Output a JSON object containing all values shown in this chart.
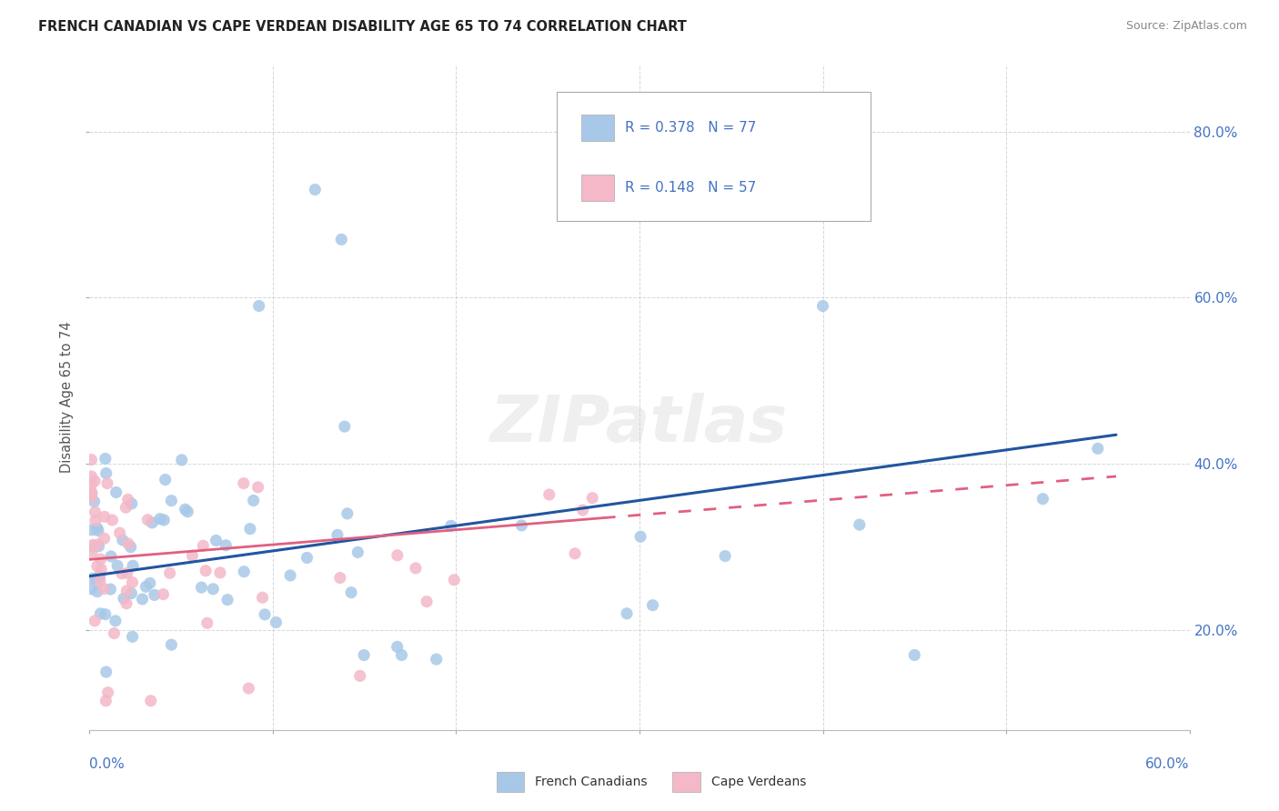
{
  "title": "FRENCH CANADIAN VS CAPE VERDEAN DISABILITY AGE 65 TO 74 CORRELATION CHART",
  "source": "Source: ZipAtlas.com",
  "ylabel": "Disability Age 65 to 74",
  "legend_label1": "French Canadians",
  "legend_label2": "Cape Verdeans",
  "R1": "0.378",
  "N1": "77",
  "R2": "0.148",
  "N2": "57",
  "blue_scatter_color": "#a8c8e8",
  "pink_scatter_color": "#f4b8c8",
  "blue_line_color": "#2155a0",
  "pink_line_color": "#e06080",
  "background_color": "#ffffff",
  "grid_color": "#cccccc",
  "title_color": "#222222",
  "source_color": "#888888",
  "axis_label_color": "#4472c4",
  "ylabel_color": "#555555",
  "xlim": [
    0.0,
    0.6
  ],
  "ylim": [
    0.08,
    0.88
  ],
  "ytick_positions": [
    0.2,
    0.4,
    0.6,
    0.8
  ],
  "ytick_labels": [
    "20.0%",
    "40.0%",
    "60.0%",
    "80.0%"
  ],
  "xtick_positions": [
    0.0,
    0.1,
    0.2,
    0.3,
    0.4,
    0.5,
    0.6
  ],
  "watermark_text": "ZIPatlas",
  "fc_seed": 42,
  "cv_seed": 99
}
